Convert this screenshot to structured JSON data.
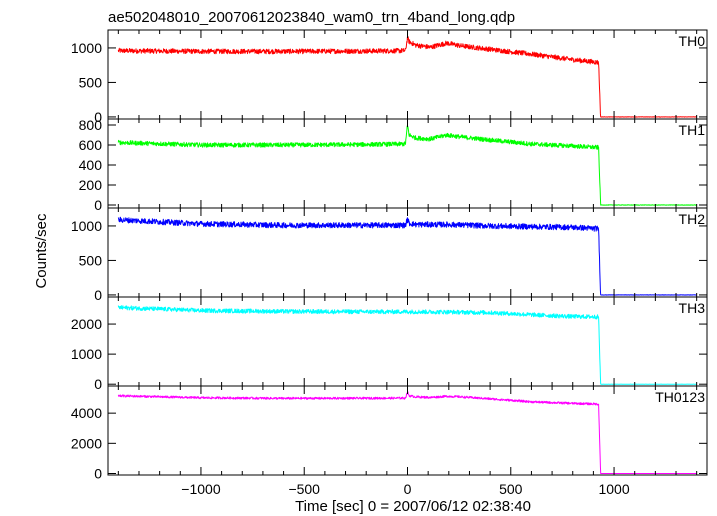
{
  "chart_data": {
    "type": "line",
    "title": "ae502048010_20070612023840_wam0_trn_4band_long.qdp",
    "xlabel": "Time [sec] 0 = 2007/06/12 02:38:40",
    "ylabel": "Counts/sec",
    "xlim": [
      -1450,
      1450
    ],
    "xticks": [
      -1000,
      -500,
      0,
      500,
      1000
    ],
    "xtick_labels": [
      "−1000",
      "−500",
      "0",
      "500",
      "1000"
    ],
    "grid": false,
    "panels": [
      {
        "name": "TH0",
        "color": "#ff0000",
        "ylim": [
          -30,
          1260
        ],
        "yticks": [
          0,
          500,
          1000
        ],
        "ytick_labels": [
          "0",
          "500",
          "1000"
        ],
        "noise": 35,
        "x": [
          -1400,
          -1000,
          -600,
          -200,
          -10,
          0,
          8,
          40,
          110,
          190,
          260,
          400,
          600,
          800,
          925,
          935,
          1400
        ],
        "y": [
          960,
          950,
          950,
          955,
          960,
          1150,
          1090,
          1040,
          1010,
          1070,
          1030,
          980,
          910,
          830,
          790,
          0,
          0
        ]
      },
      {
        "name": "TH1",
        "color": "#00ff00",
        "ylim": [
          -30,
          860
        ],
        "yticks": [
          0,
          200,
          400,
          600,
          800
        ],
        "ytick_labels": [
          "0",
          "200",
          "400",
          "600",
          "800"
        ],
        "noise": 22,
        "x": [
          -1400,
          -1000,
          -600,
          -200,
          -10,
          0,
          8,
          40,
          110,
          190,
          260,
          400,
          600,
          800,
          925,
          935,
          1400
        ],
        "y": [
          625,
          600,
          600,
          605,
          610,
          800,
          700,
          670,
          660,
          700,
          680,
          650,
          610,
          590,
          575,
          0,
          0
        ]
      },
      {
        "name": "TH2",
        "color": "#0000ff",
        "ylim": [
          -30,
          1260
        ],
        "yticks": [
          0,
          500,
          1000
        ],
        "ytick_labels": [
          "0",
          "500",
          "1000"
        ],
        "noise": 40,
        "x": [
          -1400,
          -1000,
          -600,
          -200,
          -10,
          0,
          8,
          40,
          200,
          400,
          600,
          800,
          925,
          935,
          1400
        ],
        "y": [
          1090,
          1030,
          1010,
          1010,
          1010,
          1100,
          1040,
          1020,
          1020,
          1000,
          990,
          980,
          960,
          0,
          0
        ]
      },
      {
        "name": "TH3",
        "color": "#00ffff",
        "ylim": [
          -60,
          2900
        ],
        "yticks": [
          0,
          1000,
          2000
        ],
        "ytick_labels": [
          "0",
          "1000",
          "2000"
        ],
        "noise": 70,
        "x": [
          -1400,
          -1000,
          -600,
          -200,
          0,
          200,
          400,
          600,
          800,
          925,
          935,
          1400
        ],
        "y": [
          2550,
          2450,
          2420,
          2410,
          2410,
          2400,
          2380,
          2310,
          2250,
          2240,
          0,
          0
        ]
      },
      {
        "name": "TH0123",
        "color": "#ff00ff",
        "ylim": [
          -100,
          5800
        ],
        "yticks": [
          0,
          2000,
          4000
        ],
        "ytick_labels": [
          "0",
          "2000",
          "4000"
        ],
        "noise": 70,
        "x": [
          -1400,
          -1000,
          -600,
          -200,
          -10,
          0,
          8,
          40,
          110,
          190,
          260,
          400,
          600,
          800,
          925,
          935,
          1400
        ],
        "y": [
          5150,
          5020,
          4980,
          4990,
          5000,
          5420,
          5150,
          5080,
          5040,
          5120,
          5080,
          4950,
          4750,
          4650,
          4600,
          0,
          0
        ]
      }
    ]
  }
}
